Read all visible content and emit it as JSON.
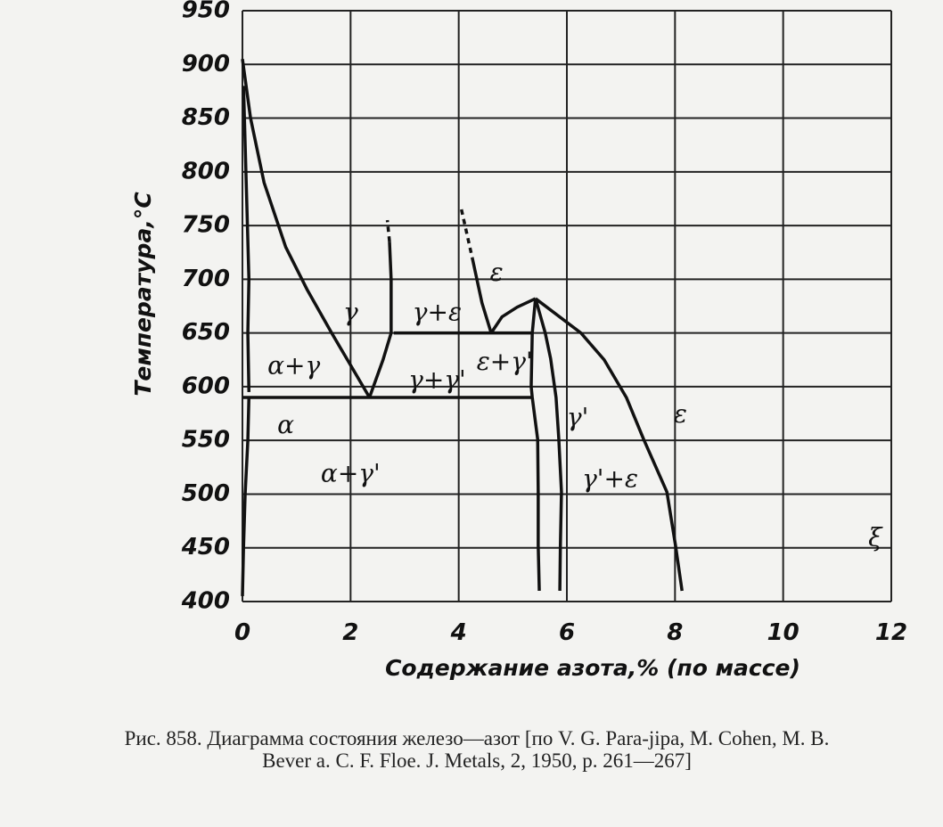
{
  "chart_data": {
    "type": "line",
    "ylabel": "Температура,°С",
    "xlabel": "Содержание азота,% (по массе)",
    "caption": "Рис. 858. Диаграмма состояния железо—азот [по V. G. Para-jipa, M. Cohen, M. B. Bever a. C. F. Floe. J. Metals, 2, 1950, p. 261—267]",
    "xlim": [
      0,
      12
    ],
    "xticks": [
      0,
      2,
      4,
      6,
      8,
      10,
      12
    ],
    "ylim": [
      400,
      950
    ],
    "yticks": [
      400,
      450,
      500,
      550,
      600,
      650,
      700,
      750,
      800,
      850,
      900,
      950
    ],
    "grid": true,
    "series": [
      {
        "color": "#111",
        "x": [
          0,
          0.15,
          0.4,
          0.8,
          1.2,
          1.65,
          2.0,
          2.35
        ],
        "values": [
          905,
          850,
          790,
          730,
          690,
          650,
          620,
          590
        ]
      },
      {
        "color": "#111",
        "x": [
          2.35,
          2.6,
          2.75,
          2.75,
          2.72
        ],
        "values": [
          590,
          625,
          650,
          700,
          735
        ]
      },
      {
        "color": "#111",
        "dash": true,
        "x": [
          2.72,
          2.68
        ],
        "values": [
          735,
          755
        ]
      },
      {
        "color": "#111",
        "x": [
          0,
          5.35
        ],
        "values": [
          590,
          590
        ]
      },
      {
        "color": "#111",
        "x": [
          2.8,
          5.35
        ],
        "values": [
          650,
          650
        ]
      },
      {
        "color": "#111",
        "x": [
          0.02,
          0.12,
          0.1,
          0.12
        ],
        "values": [
          880,
          700,
          650,
          595
        ]
      },
      {
        "color": "#111",
        "x": [
          0.12,
          0.1,
          0.05,
          0.02,
          0
        ],
        "values": [
          590,
          550,
          500,
          450,
          405
        ]
      },
      {
        "color": "#111",
        "dash": true,
        "x": [
          4.05,
          4.25
        ],
        "values": [
          765,
          720
        ]
      },
      {
        "color": "#111",
        "x": [
          4.25,
          4.43,
          4.6
        ],
        "values": [
          720,
          678,
          650
        ]
      },
      {
        "color": "#111",
        "x": [
          4.6,
          4.8,
          5.08,
          5.42
        ],
        "values": [
          650,
          665,
          674,
          682
        ]
      },
      {
        "color": "#111",
        "x": [
          5.42,
          5.36,
          5.34,
          5.36,
          5.46,
          5.47,
          5.47,
          5.49
        ],
        "values": [
          682,
          650,
          600,
          590,
          551,
          502,
          452,
          410
        ]
      },
      {
        "color": "#111",
        "x": [
          5.42,
          5.6,
          5.7,
          5.8,
          5.85,
          5.9,
          5.88,
          5.87
        ],
        "values": [
          682,
          650,
          626,
          590,
          552,
          502,
          452,
          410
        ]
      },
      {
        "color": "#111",
        "x": [
          5.42,
          6.26,
          6.69,
          7.1,
          7.42,
          7.85,
          8.01,
          8.13
        ],
        "values": [
          682,
          650,
          625,
          590,
          551,
          502,
          452,
          410
        ]
      }
    ],
    "annotations": [
      "ε",
      "γ",
      "γ+ε",
      "α+γ",
      "γ+γ'",
      "ε+γ'",
      "α",
      "γ'",
      "ε",
      "α+γ'",
      "γ'+ε",
      "ξ"
    ]
  }
}
